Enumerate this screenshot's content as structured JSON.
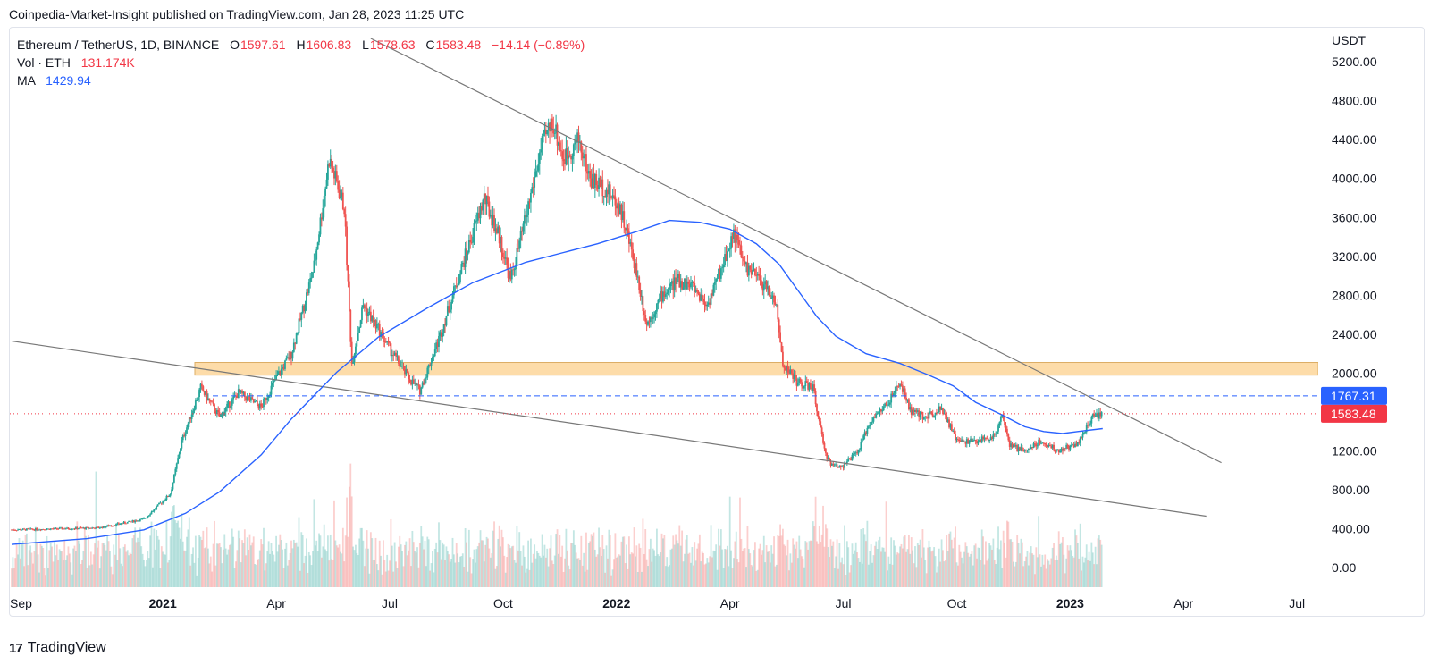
{
  "header": {
    "text": "Coinpedia-Market-Insight published on TradingView.com, Jan 28, 2023 11:25 UTC"
  },
  "legend": {
    "symbol": "Ethereum / TetherUS, 1D, BINANCE",
    "open_label": "O",
    "open": "1597.61",
    "high_label": "H",
    "high": "1606.83",
    "low_label": "L",
    "low": "1578.63",
    "close_label": "C",
    "close": "1583.48",
    "change": "−14.14 (−0.89%)",
    "vol_label": "Vol · ETH",
    "vol_value": "131.174K",
    "ma_label": "MA",
    "ma_value": "1429.94"
  },
  "footer": {
    "brand": "TradingView",
    "logo": "17"
  },
  "colors": {
    "up": "#26a69a",
    "down": "#ef5350",
    "ma": "#2962ff",
    "zone": "#fdd9a0",
    "zone_border": "#d9a655",
    "trend": "#787878",
    "last_price": "#f23645",
    "level": "#2962ff"
  },
  "chart_data": {
    "type": "candlestick",
    "title": "Ethereum / TetherUS, 1D, BINANCE",
    "currency_label": "USDT",
    "ylim": [
      -200,
      5550
    ],
    "y_ticks": [
      0,
      400,
      800,
      1200,
      1600,
      2000,
      2400,
      2800,
      3200,
      3600,
      4000,
      4400,
      4800,
      5200
    ],
    "y_tick_labels": [
      "0.00",
      "400.00",
      "800.00",
      "1200.00",
      "1600.00",
      "2000.00",
      "2400.00",
      "2800.00",
      "3200.00",
      "3600.00",
      "4000.00",
      "4400.00",
      "4800.00",
      "5200.00"
    ],
    "x_labels": [
      "Sep",
      "2021",
      "Apr",
      "Jul",
      "Oct",
      "2022",
      "Apr",
      "Jul",
      "Oct",
      "2023",
      "Apr",
      "Jul"
    ],
    "x_label_bold": [
      false,
      true,
      false,
      false,
      false,
      true,
      false,
      false,
      false,
      true,
      false,
      false
    ],
    "x_label_months": [
      0,
      4,
      7,
      10,
      13,
      16,
      19,
      22,
      25,
      28,
      31,
      34
    ],
    "x_start": "2020-09-01",
    "last_price": 1583.48,
    "last_price_label": "1583.48",
    "level_price": 1767.31,
    "level_label": "1767.31",
    "ma_last": 1429.94,
    "zone": {
      "low": 1980,
      "high": 2110
    },
    "price_path": [
      [
        0,
        390
      ],
      [
        2.3,
        410
      ],
      [
        3.5,
        500
      ],
      [
        4.2,
        760
      ],
      [
        4.5,
        1300
      ],
      [
        5.0,
        1850
      ],
      [
        5.5,
        1550
      ],
      [
        6.0,
        1800
      ],
      [
        6.6,
        1650
      ],
      [
        7.0,
        1950
      ],
      [
        7.4,
        2200
      ],
      [
        8.0,
        3100
      ],
      [
        8.4,
        4200
      ],
      [
        8.8,
        3700
      ],
      [
        9.0,
        2100
      ],
      [
        9.3,
        2700
      ],
      [
        9.7,
        2450
      ],
      [
        10.0,
        2250
      ],
      [
        10.5,
        1950
      ],
      [
        10.8,
        1820
      ],
      [
        11.3,
        2350
      ],
      [
        12.0,
        3200
      ],
      [
        12.5,
        3800
      ],
      [
        12.9,
        3400
      ],
      [
        13.2,
        2950
      ],
      [
        13.6,
        3600
      ],
      [
        14.0,
        4300
      ],
      [
        14.3,
        4600
      ],
      [
        14.6,
        4200
      ],
      [
        15.0,
        4400
      ],
      [
        15.3,
        4000
      ],
      [
        15.7,
        3900
      ],
      [
        16.1,
        3700
      ],
      [
        16.5,
        3100
      ],
      [
        16.8,
        2500
      ],
      [
        17.2,
        2800
      ],
      [
        17.6,
        2950
      ],
      [
        18.0,
        2900
      ],
      [
        18.4,
        2700
      ],
      [
        18.8,
        3100
      ],
      [
        19.1,
        3450
      ],
      [
        19.4,
        3100
      ],
      [
        19.8,
        2950
      ],
      [
        20.2,
        2750
      ],
      [
        20.4,
        2100
      ],
      [
        20.8,
        1900
      ],
      [
        21.2,
        1850
      ],
      [
        21.5,
        1200
      ],
      [
        21.7,
        1050
      ],
      [
        22.0,
        1050
      ],
      [
        22.4,
        1200
      ],
      [
        22.7,
        1500
      ],
      [
        23.2,
        1700
      ],
      [
        23.5,
        1900
      ],
      [
        23.8,
        1600
      ],
      [
        24.2,
        1550
      ],
      [
        24.6,
        1650
      ],
      [
        25.0,
        1300
      ],
      [
        25.5,
        1300
      ],
      [
        26.0,
        1350
      ],
      [
        26.2,
        1600
      ],
      [
        26.4,
        1250
      ],
      [
        26.8,
        1200
      ],
      [
        27.2,
        1300
      ],
      [
        27.7,
        1200
      ],
      [
        28.2,
        1280
      ],
      [
        28.6,
        1550
      ],
      [
        28.86,
        1583
      ]
    ],
    "ma_path": [
      [
        0,
        240
      ],
      [
        2,
        300
      ],
      [
        3.5,
        390
      ],
      [
        4.6,
        560
      ],
      [
        5.5,
        780
      ],
      [
        6.6,
        1160
      ],
      [
        7.4,
        1530
      ],
      [
        8.6,
        2010
      ],
      [
        9.7,
        2370
      ],
      [
        11.0,
        2670
      ],
      [
        12.2,
        2930
      ],
      [
        13.6,
        3140
      ],
      [
        14.6,
        3240
      ],
      [
        15.5,
        3330
      ],
      [
        16.5,
        3450
      ],
      [
        17.4,
        3570
      ],
      [
        18.2,
        3550
      ],
      [
        19.0,
        3480
      ],
      [
        19.7,
        3330
      ],
      [
        20.3,
        3120
      ],
      [
        20.8,
        2850
      ],
      [
        21.3,
        2580
      ],
      [
        21.8,
        2380
      ],
      [
        22.6,
        2200
      ],
      [
        23.5,
        2100
      ],
      [
        24.2,
        1990
      ],
      [
        24.9,
        1870
      ],
      [
        25.5,
        1700
      ],
      [
        26.2,
        1570
      ],
      [
        26.8,
        1450
      ],
      [
        27.3,
        1400
      ],
      [
        27.8,
        1380
      ],
      [
        28.2,
        1400
      ],
      [
        28.86,
        1430
      ]
    ],
    "trendlines": [
      {
        "name": "descending-resistance",
        "p1": [
          9.5,
          5440
        ],
        "p2": [
          32.0,
          1080
        ]
      },
      {
        "name": "support-line",
        "p1": [
          0,
          2330
        ],
        "p2": [
          31.6,
          530
        ]
      }
    ]
  }
}
